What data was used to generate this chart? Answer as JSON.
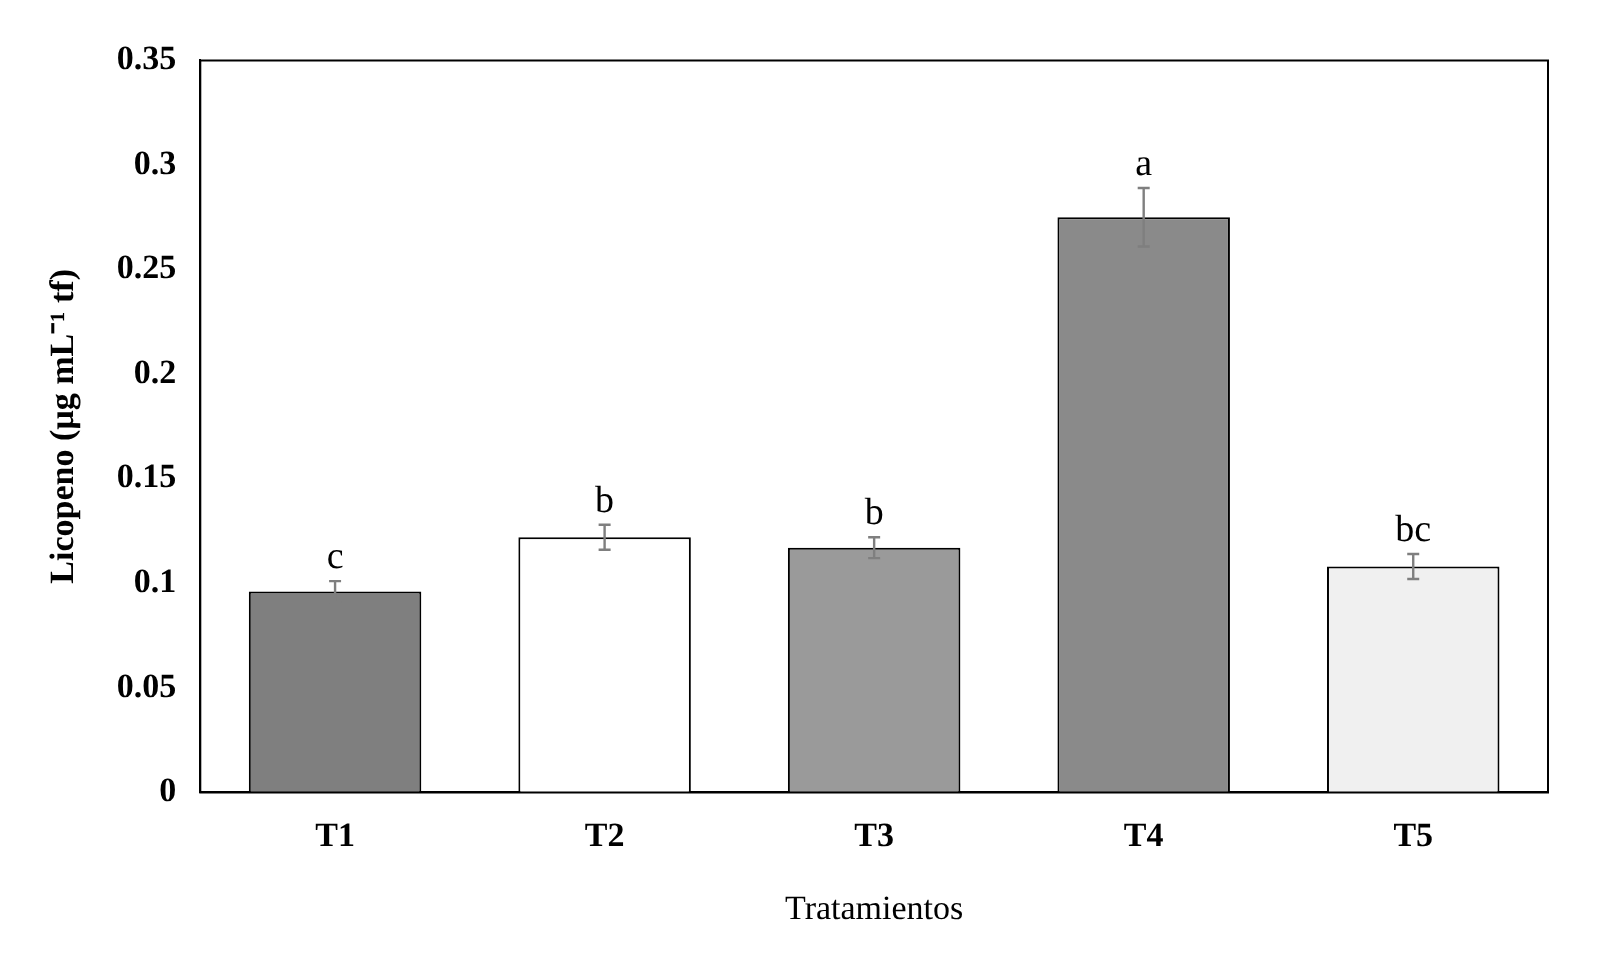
{
  "chart_data": {
    "type": "bar",
    "xlabel": "Tratamientos",
    "ylabel": "Licopeno (µg mL⁻¹ tf)",
    "categories": [
      "T1",
      "T2",
      "T3",
      "T4",
      "T5"
    ],
    "values": [
      0.096,
      0.122,
      0.117,
      0.275,
      0.108
    ],
    "errors": [
      0.005,
      0.006,
      0.005,
      0.014,
      0.006
    ],
    "colors": [
      "#7f7f7f",
      "#ffffff",
      "#9a9a9a",
      "#8a8a8a",
      "#f0f0f0"
    ],
    "ylim": [
      0,
      0.35
    ],
    "yticks": [
      0,
      0.05,
      0.1,
      0.15,
      0.2,
      0.25,
      0.3,
      0.35
    ],
    "grid": false,
    "legend": false,
    "annotations": [
      {
        "text": "c",
        "x": "T1",
        "y": 0.101
      },
      {
        "text": "b",
        "x": "T2",
        "y": 0.128
      },
      {
        "text": "b",
        "x": "T3",
        "y": 0.122
      },
      {
        "text": "a",
        "x": "T4",
        "y": 0.289
      },
      {
        "text": "bc",
        "x": "T5",
        "y": 0.114
      }
    ]
  }
}
